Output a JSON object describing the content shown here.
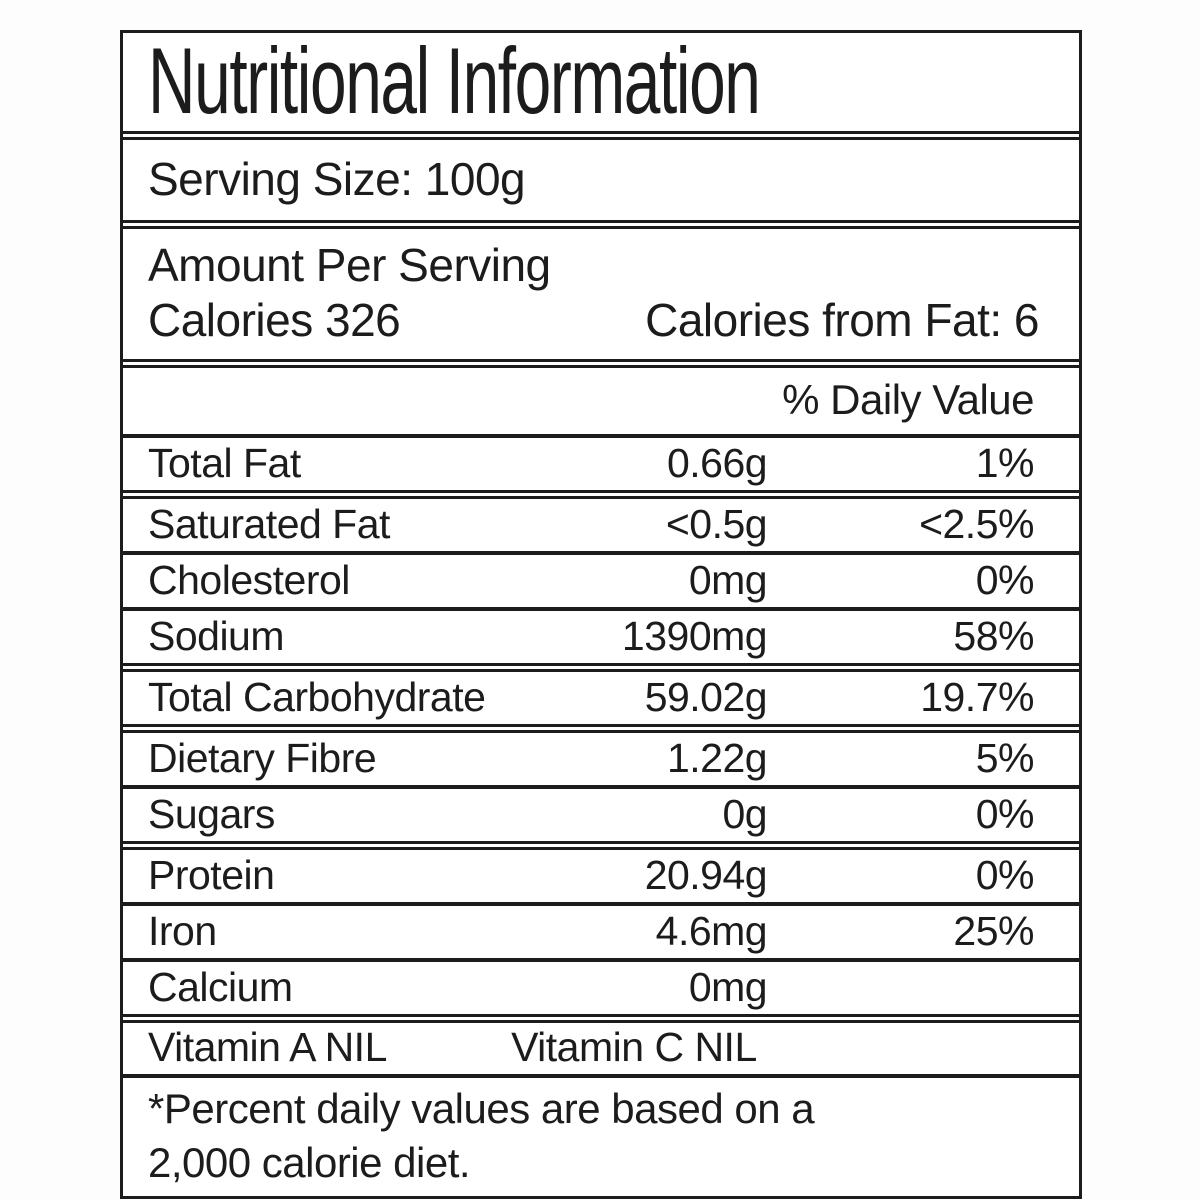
{
  "label": {
    "title": "Nutritional Information",
    "serving_size": "Serving Size: 100g",
    "amount_per_serving": "Amount Per Serving",
    "calories_line": "Calories 326",
    "calories_from_fat": "Calories from Fat: 6",
    "daily_value_header": "% Daily Value",
    "rows": [
      {
        "name": "Total Fat",
        "amount": "0.66g",
        "dv": "1%"
      },
      {
        "name": "Saturated Fat",
        "amount": "<0.5g",
        "dv": "<2.5%"
      },
      {
        "name": "Cholesterol",
        "amount": "0mg",
        "dv": "0%"
      },
      {
        "name": "Sodium",
        "amount": "1390mg",
        "dv": "58%"
      },
      {
        "name": "Total Carbohydrate",
        "amount": "59.02g",
        "dv": "19.7%"
      },
      {
        "name": "Dietary Fibre",
        "amount": "1.22g",
        "dv": "5%"
      },
      {
        "name": "Sugars",
        "amount": "0g",
        "dv": "0%"
      },
      {
        "name": "Protein",
        "amount": "20.94g",
        "dv": "0%"
      },
      {
        "name": "Iron",
        "amount": "4.6mg",
        "dv": "25%"
      },
      {
        "name": "Calcium",
        "amount": "0mg",
        "dv": ""
      }
    ],
    "vitamin_a": "Vitamin A NIL",
    "vitamin_c": "Vitamin C NIL",
    "footnote_line1": "*Percent daily values are based on a",
    "footnote_line2": "2,000 calorie diet."
  },
  "colors": {
    "ink": "#1c1c1c",
    "background": "#fdfdfd"
  }
}
